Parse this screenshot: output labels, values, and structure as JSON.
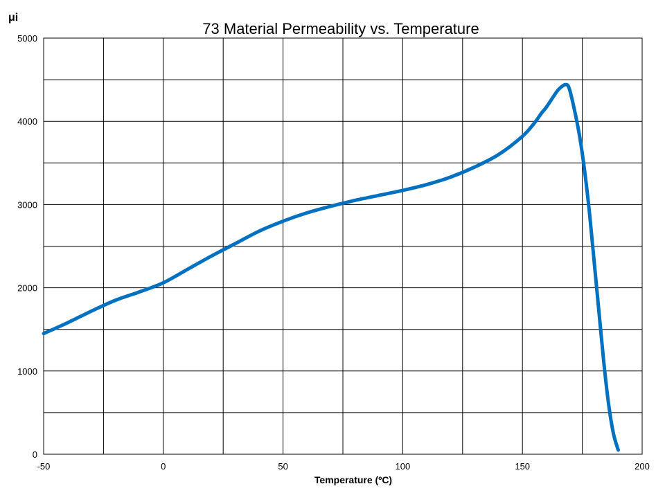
{
  "chart_data": {
    "type": "line",
    "title": "73 Material Permeability vs. Temperature",
    "xlabel": "Temperature (ºC)",
    "ylabel": "μi",
    "xlim": [
      -50,
      200
    ],
    "ylim": [
      0,
      5000
    ],
    "x_ticks": [
      -50,
      0,
      50,
      100,
      150,
      200
    ],
    "y_ticks": [
      0,
      1000,
      2000,
      3000,
      4000,
      5000
    ],
    "grid": true,
    "legend": "none",
    "colors": {
      "series": "#0070c0",
      "grid": "#000000",
      "background": "#ffffff"
    },
    "series": [
      {
        "x": [
          -50,
          -40,
          -30,
          -20,
          -10,
          0,
          10,
          20,
          30,
          40,
          50,
          60,
          70,
          80,
          90,
          100,
          110,
          120,
          130,
          140,
          150,
          155,
          158,
          160,
          163,
          165,
          167,
          168,
          169,
          170,
          172,
          174,
          176,
          178,
          180,
          182,
          184,
          186,
          188,
          190
        ],
        "y": [
          1450,
          1580,
          1720,
          1850,
          1950,
          2060,
          2220,
          2380,
          2530,
          2680,
          2800,
          2900,
          2980,
          3050,
          3110,
          3170,
          3240,
          3330,
          3450,
          3600,
          3820,
          3980,
          4100,
          4170,
          4300,
          4380,
          4430,
          4440,
          4430,
          4350,
          4100,
          3800,
          3400,
          2900,
          2300,
          1700,
          1100,
          600,
          250,
          50
        ]
      }
    ]
  }
}
